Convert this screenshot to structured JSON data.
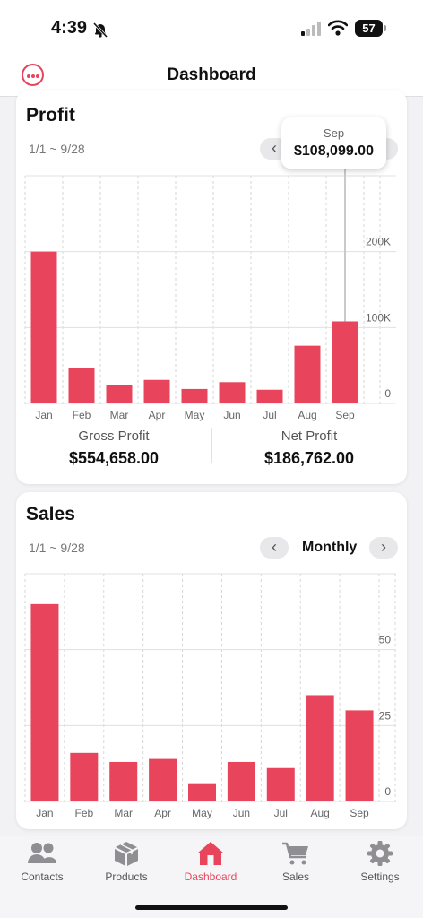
{
  "status": {
    "time": "4:39",
    "battery": "57"
  },
  "header": {
    "title": "Dashboard"
  },
  "profit": {
    "title": "Profit",
    "range": "1/1 ~ 9/28",
    "tooltip": {
      "month": "Sep",
      "value": "$108,099.00"
    },
    "gross_label": "Gross Profit",
    "gross_value": "$554,658.00",
    "net_label": "Net Profit",
    "net_value": "$186,762.00"
  },
  "sales": {
    "title": "Sales",
    "range": "1/1 ~ 9/28",
    "period": "Monthly",
    "prev_icon": "‹",
    "next_icon": "›"
  },
  "tabs": [
    {
      "label": "Contacts",
      "icon": "contacts-icon"
    },
    {
      "label": "Products",
      "icon": "box-icon"
    },
    {
      "label": "Dashboard",
      "icon": "home-icon",
      "active": true
    },
    {
      "label": "Sales",
      "icon": "cart-icon"
    },
    {
      "label": "Settings",
      "icon": "gear-icon"
    }
  ],
  "colors": {
    "accent": "#e8455c"
  },
  "chart_data": [
    {
      "type": "bar",
      "title": "Profit",
      "categories": [
        "Jan",
        "Feb",
        "Mar",
        "Apr",
        "May",
        "Jun",
        "Jul",
        "Aug",
        "Sep"
      ],
      "values": [
        200000,
        47000,
        24000,
        31000,
        19000,
        28000,
        18000,
        76000,
        108099
      ],
      "ylim": [
        0,
        300000
      ],
      "ytick_values": [
        0,
        100000,
        200000
      ],
      "ytick_labels": [
        "0",
        "100K",
        "200K"
      ],
      "grid": true,
      "highlight_index": 8
    },
    {
      "type": "bar",
      "title": "Sales",
      "categories": [
        "Jan",
        "Feb",
        "Mar",
        "Apr",
        "May",
        "Jun",
        "Jul",
        "Aug",
        "Sep"
      ],
      "values": [
        65,
        16,
        13,
        14,
        6,
        13,
        11,
        35,
        30
      ],
      "ylim": [
        0,
        75
      ],
      "ytick_values": [
        0,
        25,
        50
      ],
      "ytick_labels": [
        "0",
        "25",
        "50"
      ],
      "grid": true
    }
  ]
}
